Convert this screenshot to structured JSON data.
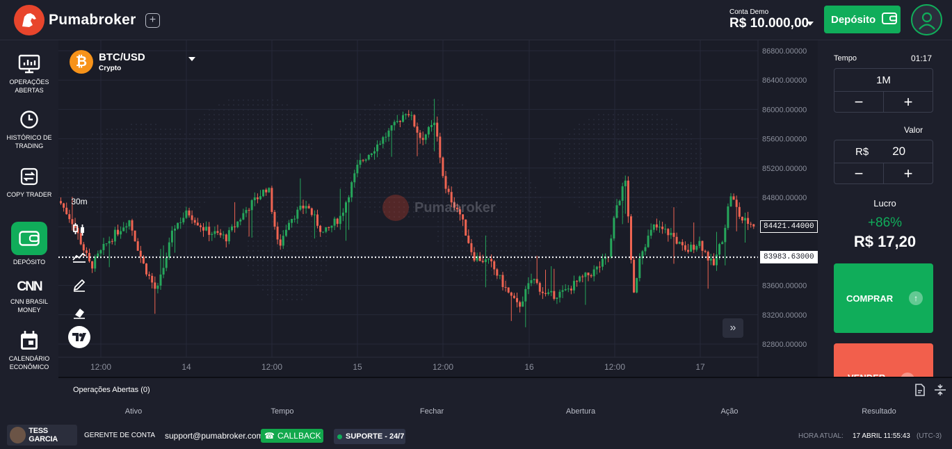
{
  "header": {
    "brand": "Pumabroker",
    "account_label": "Conta Demo",
    "balance": "R$ 10.000,00",
    "deposit_label": "Depósito"
  },
  "sidebar": {
    "items": [
      {
        "label": "OPERAÇÕES ABERTAS",
        "icon": "monitor-chart-icon"
      },
      {
        "label": "HISTÓRICO DE TRADING",
        "icon": "clock-icon"
      },
      {
        "label": "COPY TRADER",
        "icon": "copy-arrows-icon"
      },
      {
        "label": "DEPÓSITO",
        "icon": "wallet-icon"
      },
      {
        "label": "CNN BRASIL MONEY",
        "icon": "cnn-logo-icon",
        "logo_text": "CNN"
      },
      {
        "label": "CALENDÁRIO ECONÔMICO",
        "icon": "calendar-icon"
      }
    ]
  },
  "chart": {
    "asset": "BTC/USD",
    "category": "Crypto",
    "asset_symbol": "₿",
    "timeframe": "30m",
    "watermark": "Pumabroker",
    "current_price_label": "84421.44000",
    "ref_price_label": "83983.63000",
    "y_ticks": [
      "86800.00000",
      "86400.00000",
      "86000.00000",
      "85600.00000",
      "85200.00000",
      "84800.00000",
      "84400.00000",
      "84000.00000",
      "83600.00000",
      "83200.00000",
      "82800.00000"
    ],
    "x_ticks": [
      "12:00",
      "14",
      "12:00",
      "15",
      "12:00",
      "16",
      "12:00",
      "17"
    ]
  },
  "chart_data": {
    "type": "candlestick",
    "ylim": [
      82700,
      86900
    ],
    "up_color": "#26a65b",
    "down_color": "#ef6452",
    "current_price": 84421.44,
    "ref_price": 83983.63
  },
  "panel": {
    "tempo_label": "Tempo",
    "tempo_countdown": "01:17",
    "tempo_value": "1M",
    "valor_label": "Valor",
    "valor_currency": "R$",
    "valor_amount": "20",
    "minus": "−",
    "plus": "+",
    "lucro_label": "Lucro",
    "lucro_pct": "+86%",
    "lucro_value": "R$ 17,20",
    "buy_label": "COMPRAR",
    "sell_label": "VENDER"
  },
  "operations": {
    "title": "Operações Abertas (0)",
    "columns": [
      "Ativo",
      "Tempo",
      "Fechar",
      "Abertura",
      "Ação",
      "Resultado"
    ]
  },
  "footer": {
    "manager_name": "TESS GARCIA",
    "manager_role": "GERENTE DE CONTA",
    "email": "support@pumabroker.com",
    "callback": "CALLBACK",
    "support": "SUPORTE - 24/7",
    "time_label": "HORA ATUAL:",
    "time_value": "17 ABRIL 11:55:43",
    "tz": "(UTC-3)"
  }
}
